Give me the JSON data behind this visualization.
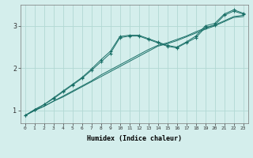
{
  "xlabel": "Humidex (Indice chaleur)",
  "background_color": "#d4eeec",
  "grid_color": "#b2d8d4",
  "line_color": "#1a7068",
  "xlim": [
    -0.5,
    23.5
  ],
  "ylim": [
    0.7,
    3.5
  ],
  "xticks": [
    0,
    1,
    2,
    3,
    4,
    5,
    6,
    7,
    8,
    9,
    10,
    11,
    12,
    13,
    14,
    15,
    16,
    17,
    18,
    19,
    20,
    21,
    22,
    23
  ],
  "yticks": [
    1,
    2,
    3
  ],
  "series": [
    {
      "markers": false,
      "x": [
        0,
        1,
        2,
        3,
        4,
        5,
        6,
        7,
        8,
        9,
        10,
        11,
        12,
        13,
        14,
        15,
        16,
        17,
        18,
        19,
        20,
        21,
        22,
        23
      ],
      "y": [
        0.88,
        1.0,
        1.1,
        1.22,
        1.32,
        1.44,
        1.56,
        1.68,
        1.8,
        1.92,
        2.04,
        2.16,
        2.28,
        2.4,
        2.52,
        2.58,
        2.65,
        2.74,
        2.83,
        2.92,
        3.0,
        3.1,
        3.2,
        3.22
      ]
    },
    {
      "markers": false,
      "x": [
        0,
        1,
        2,
        3,
        4,
        5,
        6,
        7,
        8,
        9,
        10,
        11,
        12,
        13,
        14,
        15,
        16,
        17,
        18,
        19,
        20,
        21,
        22,
        23
      ],
      "y": [
        0.88,
        1.0,
        1.1,
        1.22,
        1.34,
        1.46,
        1.58,
        1.7,
        1.84,
        1.96,
        2.08,
        2.2,
        2.32,
        2.44,
        2.54,
        2.6,
        2.68,
        2.76,
        2.86,
        2.95,
        3.02,
        3.12,
        3.22,
        3.25
      ]
    },
    {
      "markers": true,
      "x": [
        0,
        1,
        2,
        3,
        4,
        5,
        6,
        7,
        8,
        9,
        10,
        11,
        12,
        13,
        14,
        15,
        16,
        17,
        18,
        19,
        20,
        21,
        22,
        23
      ],
      "y": [
        0.88,
        1.02,
        1.14,
        1.28,
        1.44,
        1.6,
        1.76,
        1.95,
        2.15,
        2.35,
        2.72,
        2.76,
        2.76,
        2.68,
        2.6,
        2.52,
        2.48,
        2.6,
        2.72,
        2.96,
        3.02,
        3.25,
        3.35,
        3.28
      ]
    },
    {
      "markers": true,
      "x": [
        0,
        1,
        2,
        3,
        4,
        5,
        6,
        7,
        8,
        9,
        10,
        11,
        12,
        13,
        14,
        15,
        16,
        17,
        18,
        19,
        20,
        21,
        22,
        23
      ],
      "y": [
        0.88,
        1.02,
        1.14,
        1.3,
        1.46,
        1.62,
        1.78,
        1.98,
        2.2,
        2.4,
        2.75,
        2.78,
        2.78,
        2.7,
        2.62,
        2.54,
        2.5,
        2.62,
        2.76,
        3.0,
        3.06,
        3.28,
        3.38,
        3.3
      ]
    }
  ]
}
